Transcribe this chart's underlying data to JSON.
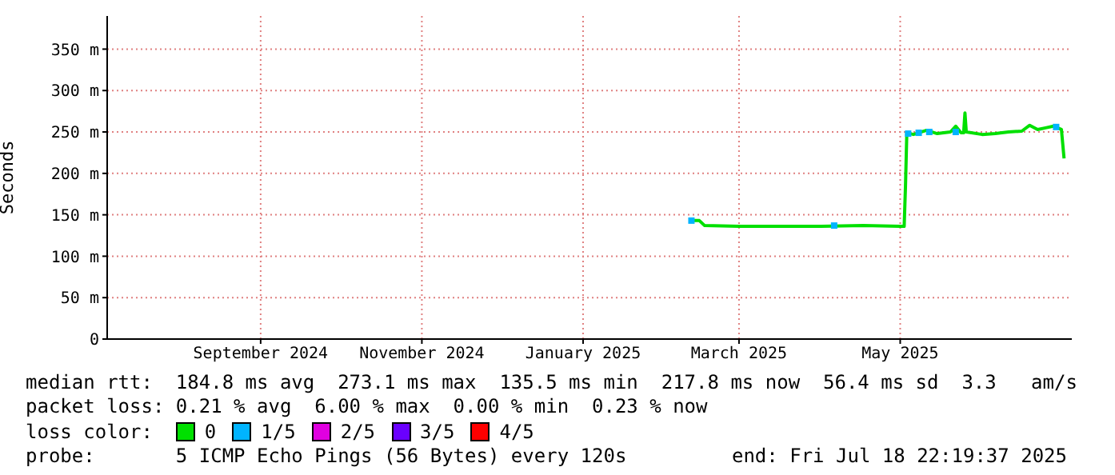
{
  "chart_data": {
    "type": "line",
    "ylabel": "Seconds",
    "legend_title": "loss color:",
    "legend": "bottom",
    "grid": true,
    "marker": "none",
    "line_style": "solid",
    "xlim": [
      "2024-07-18T22:19",
      "2025-07-18T22:19"
    ],
    "xticks": [
      {
        "value": "2024-09-15",
        "label": "September 2024"
      },
      {
        "value": "2024-11-15",
        "label": "November 2024"
      },
      {
        "value": "2025-01-15",
        "label": "January 2025"
      },
      {
        "value": "2025-03-15",
        "label": "March 2025"
      },
      {
        "value": "2025-05-15",
        "label": "May 2025"
      }
    ],
    "ylim": [
      0,
      390
    ],
    "yticks": [
      0,
      {
        "value": 50,
        "label": "50 m"
      },
      {
        "value": 100,
        "label": "100 m"
      },
      {
        "value": 150,
        "label": "150 m"
      },
      {
        "value": 200,
        "label": "200 m"
      },
      {
        "value": 250,
        "label": "250 m"
      },
      {
        "value": 300,
        "label": "300 m"
      },
      {
        "value": 350,
        "label": "350 m"
      }
    ],
    "series": [
      {
        "name": "0",
        "color": "#00e000",
        "x": [
          "2025-02-24",
          "2025-02-28",
          "2025-03-02",
          "2025-03-15",
          "2025-04-01",
          "2025-04-15",
          "2025-05-01",
          "2025-05-15",
          "2025-05-16T12:00",
          "2025-05-17",
          "2025-05-17T12:00",
          "2025-05-20",
          "2025-05-25",
          "2025-05-29",
          "2025-06-03",
          "2025-06-05",
          "2025-06-07",
          "2025-06-08",
          "2025-06-08T12:00",
          "2025-06-09",
          "2025-06-15",
          "2025-06-20",
          "2025-06-25",
          "2025-06-30",
          "2025-07-03",
          "2025-07-06",
          "2025-07-09",
          "2025-07-12",
          "2025-07-15",
          "2025-07-16"
        ],
        "values": [
          143,
          143,
          137,
          136,
          136,
          136,
          137,
          136,
          136,
          185,
          249,
          247,
          252,
          248,
          250,
          257,
          249,
          249,
          273,
          250,
          247,
          248,
          250,
          251,
          258,
          253,
          255,
          257,
          253,
          218
        ]
      },
      {
        "name": "1/5",
        "color": "#00b4ff",
        "type": "scatter",
        "marker": "square",
        "x": [
          "2025-02-25",
          "2025-04-20",
          "2025-05-18",
          "2025-05-22",
          "2025-05-26",
          "2025-06-05",
          "2025-07-13"
        ],
        "values": [
          143,
          137,
          248,
          249,
          250,
          250,
          256
        ]
      },
      {
        "name": "2/5",
        "color": "#e000e0",
        "type": "scatter",
        "marker": "square"
      },
      {
        "name": "3/5",
        "color": "#6a00ff",
        "type": "scatter",
        "marker": "square"
      },
      {
        "name": "4/5",
        "color": "#ff0000",
        "type": "scatter",
        "marker": "square"
      }
    ],
    "annotations": [
      "median rtt:  184.8 ms avg  273.1 ms max  135.5 ms min  217.8 ms now  56.4 ms sd  3.3   am/s",
      "packet loss: 0.21 % avg  6.00 % max  0.00 % min  0.23 % now",
      "probe:       5 ICMP Echo Pings (56 Bytes) every 120s",
      "end: Fri Jul 18 22:19:37 2025"
    ]
  }
}
